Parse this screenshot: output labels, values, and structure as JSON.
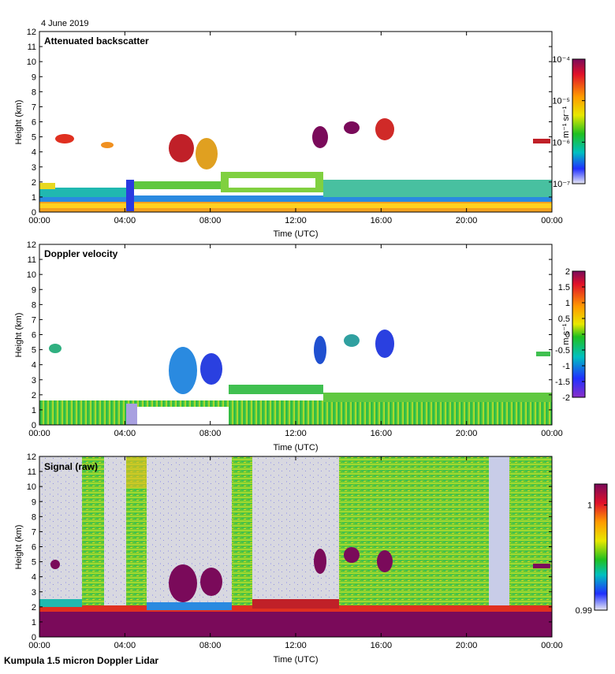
{
  "date_label": "4 June 2019",
  "footer": "Kumpula 1.5 micron Doppler Lidar",
  "chart_data": [
    {
      "type": "heatmap",
      "title": "Attenuated backscatter",
      "xlabel": "Time (UTC)",
      "ylabel": "Height (km)",
      "x_ticks": [
        "00:00",
        "04:00",
        "08:00",
        "12:00",
        "16:00",
        "20:00",
        "00:00"
      ],
      "y_ticks": [
        0,
        1,
        2,
        3,
        4,
        5,
        6,
        7,
        8,
        9,
        10,
        11,
        12
      ],
      "xlim_hours": [
        0,
        24
      ],
      "ylim_km": [
        0,
        12
      ],
      "colorbar": {
        "scale": "log",
        "range": [
          "1e-7",
          "1e-4"
        ],
        "ticks": [
          "10⁻⁴",
          "10⁻⁵",
          "10⁻⁶",
          "10⁻⁷"
        ],
        "tick_values": [
          -4,
          -5,
          -6,
          -7
        ],
        "units": "m⁻¹ sr⁻¹"
      }
    },
    {
      "type": "heatmap",
      "title": "Doppler velocity",
      "xlabel": "Time (UTC)",
      "ylabel": "Height (km)",
      "x_ticks": [
        "00:00",
        "04:00",
        "08:00",
        "12:00",
        "16:00",
        "20:00",
        "00:00"
      ],
      "y_ticks": [
        0,
        1,
        2,
        3,
        4,
        5,
        6,
        7,
        8,
        9,
        10,
        11,
        12
      ],
      "xlim_hours": [
        0,
        24
      ],
      "ylim_km": [
        0,
        12
      ],
      "colorbar": {
        "scale": "linear",
        "range": [
          -2,
          2
        ],
        "ticks": [
          "2",
          "1.5",
          "1",
          "0.5",
          "0",
          "-0.5",
          "-1",
          "-1.5",
          "-2"
        ],
        "tick_values": [
          2,
          1.5,
          1,
          0.5,
          0,
          -0.5,
          -1,
          -1.5,
          -2
        ],
        "units": "m s⁻¹"
      }
    },
    {
      "type": "heatmap",
      "title": "Signal (raw)",
      "xlabel": "Time (UTC)",
      "ylabel": "Height (km)",
      "x_ticks": [
        "00:00",
        "04:00",
        "08:00",
        "12:00",
        "16:00",
        "20:00",
        "00:00"
      ],
      "y_ticks": [
        0,
        1,
        2,
        3,
        4,
        5,
        6,
        7,
        8,
        9,
        10,
        11,
        12
      ],
      "xlim_hours": [
        0,
        24
      ],
      "ylim_km": [
        0,
        12
      ],
      "colorbar": {
        "scale": "linear",
        "range": [
          0.99,
          1.002
        ],
        "ticks": [
          "1",
          "0.99"
        ],
        "tick_values": [
          1,
          0.99
        ],
        "units": ""
      }
    }
  ]
}
